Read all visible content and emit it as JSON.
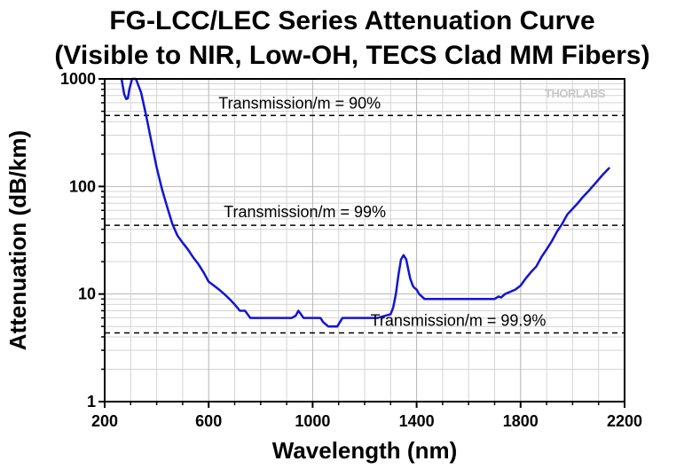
{
  "chart_data": {
    "type": "line",
    "title": "FG-LCC/LEC Series Attenuation Curve",
    "subtitle": "(Visible to NIR, Low-OH, TECS Clad MM Fibers)",
    "xlabel": "Wavelength (nm)",
    "ylabel": "Attenuation (dB/km)",
    "xlim": [
      200,
      2200
    ],
    "ylim": [
      1,
      1000
    ],
    "yscale": "log",
    "grid": true,
    "x_ticks": [
      "200",
      "600",
      "1000",
      "1400",
      "1800",
      "2200"
    ],
    "y_ticks": [
      "1",
      "10",
      "100",
      "1000"
    ],
    "series": [
      {
        "color": "#1414d2",
        "x": [
          265,
          275,
          283,
          289,
          295,
          305,
          310,
          320,
          340,
          360,
          380,
          400,
          420,
          440,
          460,
          480,
          500,
          520,
          540,
          560,
          580,
          600,
          620,
          640,
          660,
          680,
          700,
          720,
          740,
          760,
          780,
          800,
          840,
          880,
          920,
          935,
          945,
          955,
          965,
          990,
          1000,
          1030,
          1040,
          1060,
          1080,
          1095,
          1105,
          1115,
          1150,
          1200,
          1250,
          1300,
          1310,
          1320,
          1330,
          1340,
          1350,
          1360,
          1370,
          1375,
          1380,
          1385,
          1390,
          1400,
          1410,
          1420,
          1430,
          1440,
          1450,
          1460,
          1480,
          1500,
          1550,
          1600,
          1650,
          1700,
          1715,
          1725,
          1740,
          1760,
          1780,
          1800,
          1820,
          1840,
          1860,
          1880,
          1900,
          1920,
          1940,
          1960,
          1980,
          2000,
          2020,
          2040,
          2060,
          2080,
          2100,
          2120,
          2140
        ],
        "y": [
          1000,
          720,
          650,
          660,
          800,
          1000,
          1000,
          1000,
          750,
          450,
          260,
          150,
          95,
          65,
          45,
          35,
          30,
          26,
          22,
          19,
          16,
          13,
          12,
          11,
          10,
          9,
          8,
          7,
          7,
          6,
          6,
          6,
          6,
          6,
          6,
          6.3,
          7,
          6.5,
          6,
          6,
          6,
          6,
          5.5,
          5,
          5,
          5,
          5.5,
          6,
          6,
          6,
          6,
          6.5,
          7.5,
          10,
          15,
          21,
          23,
          21,
          16,
          14,
          13,
          12,
          11.5,
          11,
          10,
          9.5,
          9,
          9,
          9,
          9,
          9,
          9,
          9,
          9,
          9,
          9,
          9.5,
          9.3,
          10,
          10.5,
          11,
          12,
          14,
          16,
          18,
          22,
          26,
          31,
          38,
          45,
          55,
          62,
          70,
          80,
          90,
          102,
          116,
          132,
          148
        ]
      }
    ],
    "annotations": [
      "Transmission/m = 90%",
      "Transmission/m = 99%",
      "Transmission/m = 99.9%"
    ],
    "reference_lines": [
      {
        "label": "Transmission/m = 90%",
        "y": 457
      },
      {
        "label": "Transmission/m = 99%",
        "y": 43.6
      },
      {
        "label": "Transmission/m = 99.9%",
        "y": 4.35
      }
    ],
    "logo_text": "THORLABS"
  }
}
